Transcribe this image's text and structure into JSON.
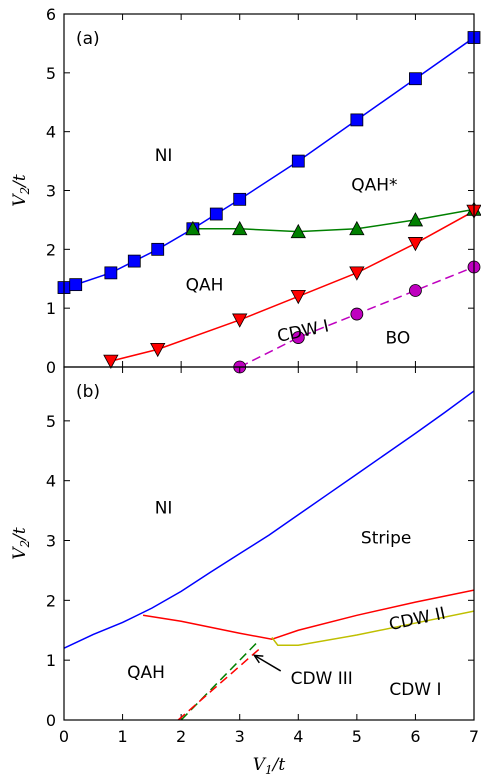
{
  "chart_data": [
    {
      "type": "line",
      "panel_label": "(a)",
      "xlabel": "",
      "ylabel": "V2/t",
      "xlim": [
        0,
        7
      ],
      "ylim": [
        0,
        6
      ],
      "yticks": [
        "0",
        "1",
        "2",
        "3",
        "4",
        "5",
        "6"
      ],
      "grid": false,
      "series": [
        {
          "color": "#0000ff",
          "marker": "square",
          "linestyle": "solid",
          "x": [
            0,
            0.2,
            0.8,
            1.2,
            1.6,
            2.2,
            2.6,
            3.0,
            4.0,
            5.0,
            6.0,
            7.0
          ],
          "y": [
            1.35,
            1.4,
            1.6,
            1.8,
            2.0,
            2.35,
            2.6,
            2.85,
            3.5,
            4.2,
            4.9,
            5.6
          ]
        },
        {
          "color": "#008000",
          "marker": "triangle-up",
          "linestyle": "solid",
          "x": [
            2.2,
            3.0,
            4.0,
            5.0,
            6.0,
            7.0
          ],
          "y": [
            2.35,
            2.35,
            2.3,
            2.35,
            2.5,
            2.68
          ]
        },
        {
          "color": "#ff0000",
          "marker": "triangle-down",
          "linestyle": "solid",
          "x": [
            0.8,
            1.6,
            3.0,
            4.0,
            5.0,
            6.0,
            7.0
          ],
          "y": [
            0.1,
            0.3,
            0.8,
            1.2,
            1.6,
            2.1,
            2.65
          ]
        },
        {
          "color": "#bf00bf",
          "marker": "circle",
          "linestyle": "dashed",
          "x": [
            3.0,
            4.0,
            5.0,
            6.0,
            7.0
          ],
          "y": [
            0.0,
            0.5,
            0.9,
            1.3,
            1.7
          ]
        }
      ],
      "annotations": [
        {
          "text": "NI",
          "x": 1.7,
          "y": 3.6
        },
        {
          "text": "QAH*",
          "x": 5.3,
          "y": 3.1
        },
        {
          "text": "QAH",
          "x": 2.4,
          "y": 1.4
        },
        {
          "text": "CDW I",
          "x": 4.1,
          "y": 0.62,
          "rotation": -12
        },
        {
          "text": "BO",
          "x": 5.7,
          "y": 0.5
        }
      ]
    },
    {
      "type": "line",
      "panel_label": "(b)",
      "xlabel": "V1/t",
      "ylabel": "V2/t",
      "xlim": [
        0,
        7
      ],
      "ylim": [
        0,
        5.9
      ],
      "xticks": [
        "0",
        "1",
        "2",
        "3",
        "4",
        "5",
        "6",
        "7"
      ],
      "yticks": [
        "0",
        "1",
        "2",
        "3",
        "4",
        "5"
      ],
      "grid": false,
      "series": [
        {
          "color": "#0000ff",
          "linestyle": "solid",
          "x": [
            0,
            0.5,
            1.0,
            1.5,
            2.0,
            2.5,
            3.0,
            3.5,
            4.0,
            4.5,
            5.0,
            5.5,
            6.0,
            6.5,
            7.0
          ],
          "y": [
            1.2,
            1.43,
            1.63,
            1.87,
            2.15,
            2.47,
            2.78,
            3.09,
            3.43,
            3.77,
            4.11,
            4.45,
            4.79,
            5.14,
            5.5
          ]
        },
        {
          "color": "#ff0000",
          "linestyle": "solid",
          "x": [
            1.35,
            2.0,
            2.5,
            3.0,
            3.55,
            4.0,
            5.0,
            6.0,
            7.0
          ],
          "y": [
            1.75,
            1.65,
            1.55,
            1.45,
            1.35,
            1.5,
            1.75,
            1.97,
            2.17
          ]
        },
        {
          "color": "#bfbf00",
          "linestyle": "solid",
          "x": [
            3.55,
            3.65,
            4.0,
            5.0,
            6.0,
            7.0
          ],
          "y": [
            1.38,
            1.25,
            1.25,
            1.42,
            1.62,
            1.82
          ]
        },
        {
          "color": "#008000",
          "linestyle": "dashed",
          "x": [
            2.0,
            3.3
          ],
          "y": [
            0.0,
            1.3
          ]
        },
        {
          "color": "#ff0000",
          "linestyle": "dashed",
          "x": [
            1.95,
            3.35
          ],
          "y": [
            0.0,
            1.2
          ]
        }
      ],
      "annotations": [
        {
          "text": "NI",
          "x": 1.7,
          "y": 3.55
        },
        {
          "text": "Stripe",
          "x": 5.5,
          "y": 3.05
        },
        {
          "text": "CDW II",
          "x": 6.05,
          "y": 1.7,
          "rotation": -12
        },
        {
          "text": "QAH",
          "x": 1.4,
          "y": 0.8
        },
        {
          "text": "CDW III",
          "x": 4.4,
          "y": 0.7
        },
        {
          "text": "CDW I",
          "x": 6.0,
          "y": 0.52
        }
      ],
      "arrow": {
        "from": [
          3.7,
          0.82
        ],
        "to": [
          3.25,
          1.08
        ]
      }
    }
  ]
}
